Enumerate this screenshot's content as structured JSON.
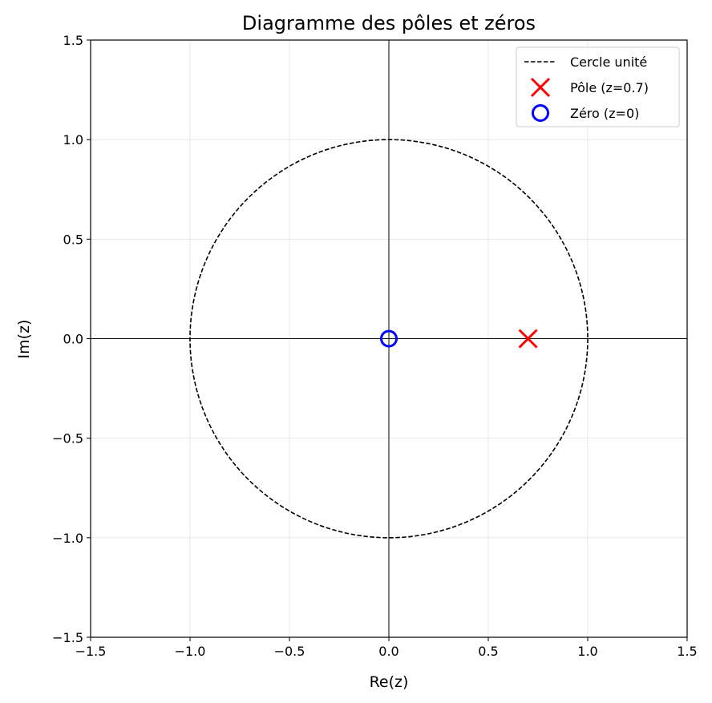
{
  "chart_data": {
    "type": "scatter",
    "title": "Diagramme des pôles et zéros",
    "xlabel": "Re(z)",
    "ylabel": "Im(z)",
    "xlim": [
      -1.5,
      1.5
    ],
    "ylim": [
      -1.5,
      1.5
    ],
    "xticks": [
      -1.5,
      -1.0,
      -0.5,
      0.0,
      0.5,
      1.0,
      1.5
    ],
    "yticks": [
      -1.5,
      -1.0,
      -0.5,
      0.0,
      0.5,
      1.0,
      1.5
    ],
    "xtick_labels": [
      "−1.5",
      "−1.0",
      "−0.5",
      "0.0",
      "0.5",
      "1.0",
      "1.5"
    ],
    "ytick_labels": [
      "−1.5",
      "−1.0",
      "−0.5",
      "0.0",
      "0.5",
      "1.0",
      "1.5"
    ],
    "grid": true,
    "legend_position": "top-right",
    "series": [
      {
        "name": "Cercle unité",
        "kind": "unit-circle",
        "radius": 1.0,
        "color": "#000000",
        "style": "dashed"
      },
      {
        "name": "Pôle (z=0.7)",
        "kind": "pole",
        "marker": "x",
        "color": "#ff0000",
        "points": [
          {
            "x": 0.7,
            "y": 0.0
          }
        ]
      },
      {
        "name": "Zéro (z=0)",
        "kind": "zero",
        "marker": "o",
        "color": "#0000ff",
        "points": [
          {
            "x": 0.0,
            "y": 0.0
          }
        ]
      }
    ]
  }
}
